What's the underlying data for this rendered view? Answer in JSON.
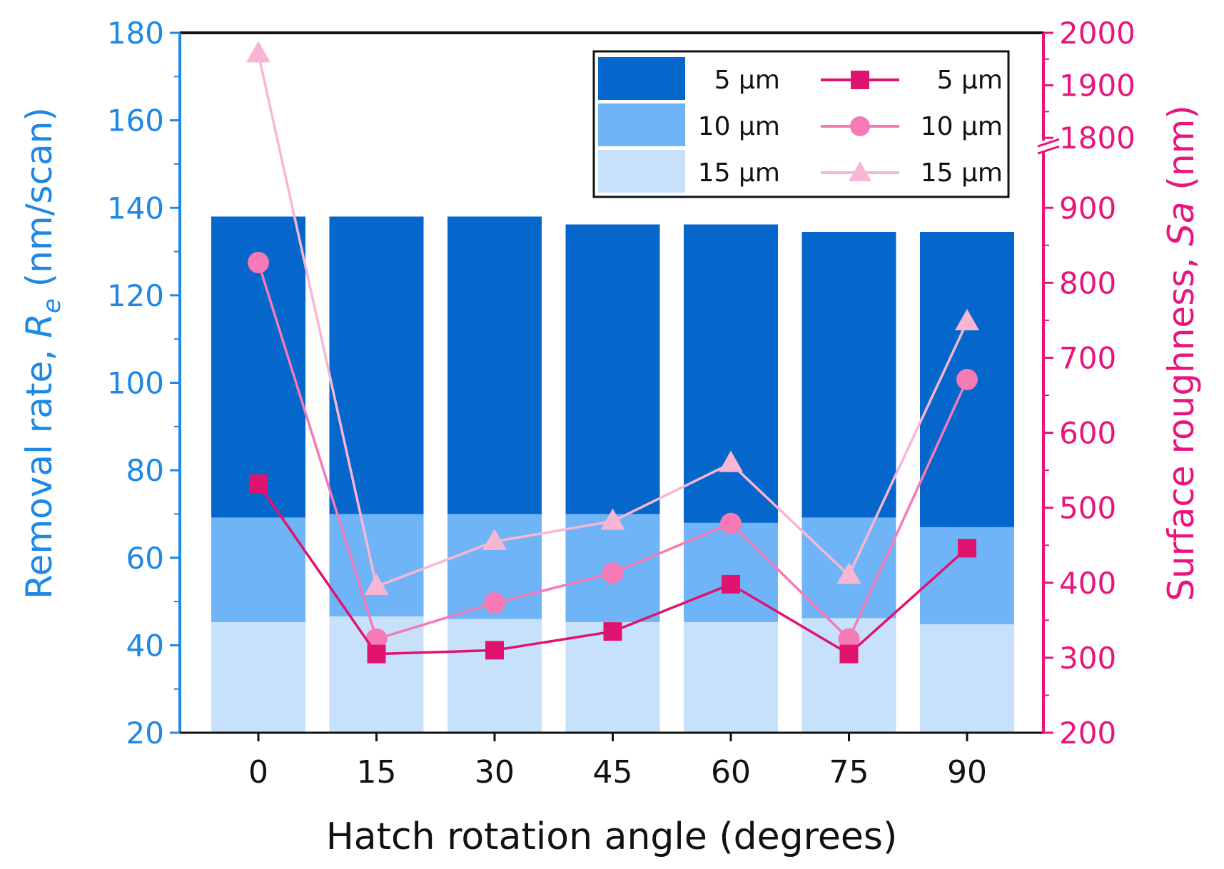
{
  "chart_data": {
    "type": "bar",
    "xlabel": "Hatch rotation angle (degrees)",
    "categories": [
      "0",
      "15",
      "30",
      "45",
      "60",
      "75",
      "90"
    ],
    "left_axis": {
      "label_main": "Removal rate, ",
      "label_symbol": "R",
      "label_subscript": "e",
      "label_unit": " (nm/scan)",
      "ylim": [
        20,
        180
      ],
      "ticks": [
        "20",
        "40",
        "60",
        "80",
        "100",
        "120",
        "140",
        "160",
        "180"
      ],
      "color": "#1e88e5"
    },
    "right_axis": {
      "label_main": "Surface roughness, ",
      "label_symbol": "Sa",
      "label_unit": " (nm)",
      "lower_range": [
        200,
        900
      ],
      "upper_range": [
        1800,
        2000
      ],
      "ticks": [
        "200",
        "300",
        "400",
        "500",
        "600",
        "700",
        "800",
        "900",
        "1800",
        "1900",
        "2000"
      ],
      "break_between": [
        900,
        1800
      ],
      "color": "#e8157d"
    },
    "bar_series": [
      {
        "name": "5 µm",
        "color": "#0566cc",
        "values": [
          138,
          138,
          138,
          136.2,
          136.2,
          134.5,
          134.5
        ]
      },
      {
        "name": "10 µm",
        "color": "#6eb4f7",
        "values": [
          69.2,
          70,
          70,
          70,
          68,
          69.2,
          67
        ]
      },
      {
        "name": "15 µm",
        "color": "#c8e1fb",
        "values": [
          45.3,
          46.6,
          46,
          45.3,
          45.3,
          46.2,
          44.8
        ]
      }
    ],
    "line_series": [
      {
        "name": "5 µm",
        "color": "#e0136f",
        "marker": "square",
        "values": [
          532,
          305,
          310,
          335,
          398,
          305,
          446
        ]
      },
      {
        "name": "10 µm",
        "color": "#f57ab5",
        "marker": "circle",
        "values": [
          827,
          325,
          373,
          413,
          479,
          325,
          671
        ]
      },
      {
        "name": "15 µm",
        "color": "#f9b6d4",
        "marker": "triangle",
        "values": [
          1960,
          395,
          455,
          482,
          559,
          410,
          748
        ]
      }
    ],
    "legend_position": "top-right",
    "legend": {
      "bars": [
        "5 µm",
        "10 µm",
        "15 µm"
      ],
      "lines": [
        "5 µm",
        "10 µm",
        "15 µm"
      ]
    }
  }
}
